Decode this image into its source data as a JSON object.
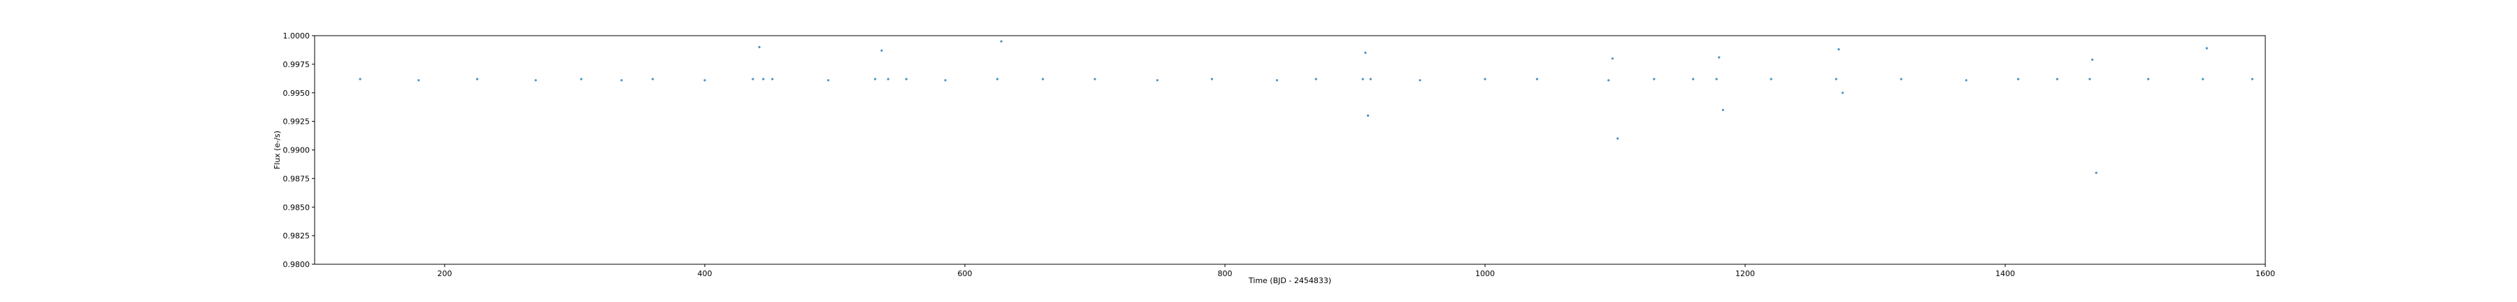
{
  "chart_data": {
    "type": "scatter",
    "title": "",
    "xlabel": "Time (BJD - 2454833)",
    "ylabel": "Flux (e-/s)",
    "xlim": [
      100,
      1600
    ],
    "ylim": [
      0.98,
      1.0
    ],
    "xticks": [
      200,
      400,
      600,
      800,
      1000,
      1200,
      1400,
      1600
    ],
    "xtick_labels": [
      "200",
      "400",
      "600",
      "800",
      "1000",
      "1200",
      "1400",
      "1600"
    ],
    "yticks": [
      0.98,
      0.9825,
      0.985,
      0.9875,
      0.99,
      0.9925,
      0.995,
      0.9975,
      1.0
    ],
    "ytick_labels": [
      "0.9800",
      "0.9825",
      "0.9850",
      "0.9875",
      "0.9900",
      "0.9925",
      "0.9950",
      "0.9975",
      "1.0000"
    ],
    "grid": false,
    "legend": "none",
    "marker_color": "#1f77b4",
    "series": [
      {
        "x": [
          135,
          180,
          225,
          270,
          305,
          336,
          360,
          400,
          437,
          442,
          445,
          452,
          495,
          531,
          536,
          541,
          555,
          585,
          625,
          628,
          660,
          700,
          748,
          790,
          840,
          870,
          906,
          908,
          910,
          912,
          950,
          1000,
          1040,
          1095,
          1098,
          1102,
          1130,
          1160,
          1178,
          1180,
          1183,
          1220,
          1270,
          1272,
          1275,
          1320,
          1370,
          1410,
          1440,
          1465,
          1467,
          1470,
          1510,
          1552,
          1555,
          1590
        ],
        "y": [
          0.9962,
          0.9961,
          0.9962,
          0.9961,
          0.9962,
          0.9961,
          0.9962,
          0.9961,
          0.9962,
          0.999,
          0.9962,
          0.9962,
          0.9961,
          0.9962,
          0.9987,
          0.9962,
          0.9962,
          0.9961,
          0.9962,
          0.9995,
          0.9962,
          0.9962,
          0.9961,
          0.9962,
          0.9961,
          0.9962,
          0.9962,
          0.9985,
          0.993,
          0.9962,
          0.9961,
          0.9962,
          0.9962,
          0.9961,
          0.998,
          0.991,
          0.9962,
          0.9962,
          0.9962,
          0.9981,
          0.9935,
          0.9962,
          0.9962,
          0.9988,
          0.995,
          0.9962,
          0.9961,
          0.9962,
          0.9962,
          0.9962,
          0.9979,
          0.988,
          0.9962,
          0.9962,
          0.9989,
          0.9962
        ]
      }
    ]
  }
}
